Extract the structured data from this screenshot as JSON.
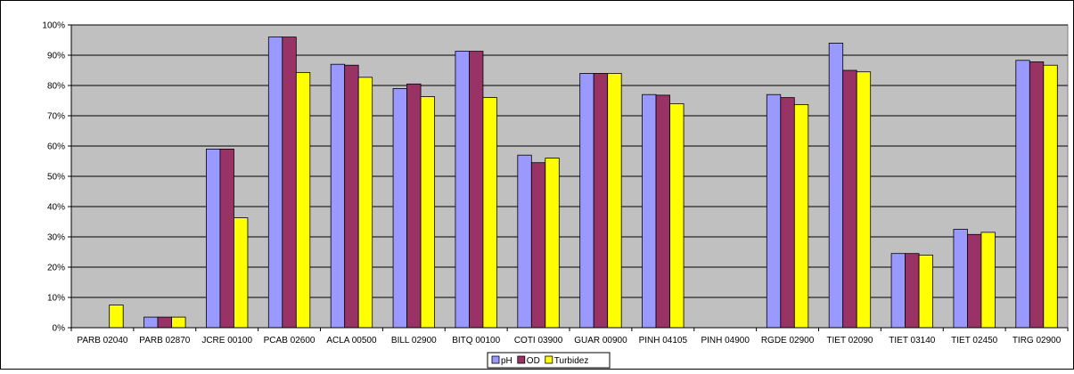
{
  "chart_data": {
    "type": "bar",
    "title": "",
    "xlabel": "",
    "ylabel": "",
    "ylim": [
      0,
      100
    ],
    "yticks": [
      "0%",
      "10%",
      "20%",
      "30%",
      "40%",
      "50%",
      "60%",
      "70%",
      "80%",
      "90%",
      "100%"
    ],
    "grid": true,
    "plot_background": "#c0c0c0",
    "legend_position": "bottom",
    "categories": [
      "PARB 02040",
      "PARB 02870",
      "JCRE 00100",
      "PCAB 02600",
      "ACLA 00500",
      "BILL 02900",
      "BITQ 00100",
      "COTI 03900",
      "GUAR 00900",
      "PINH 04105",
      "PINH 04900",
      "RGDE 02900",
      "TIET 02090",
      "TIET 03140",
      "TIET 02450",
      "TIRG 02900"
    ],
    "series": [
      {
        "name": "pH",
        "color": "#9999ff",
        "values": [
          0,
          3.5,
          59,
          96,
          87,
          79,
          91.3,
          57,
          84,
          77,
          0,
          77,
          94,
          24.5,
          32.5,
          88.3
        ]
      },
      {
        "name": "OD",
        "color": "#993366",
        "values": [
          0,
          3.5,
          59,
          96,
          86.7,
          80.5,
          91.3,
          54.5,
          84,
          76.8,
          0,
          76,
          85,
          24.5,
          30.8,
          87.8
        ]
      },
      {
        "name": "Turbidez",
        "color": "#ffff00",
        "values": [
          7.5,
          3.5,
          36.3,
          84.3,
          82.7,
          76.3,
          76,
          56,
          84,
          74,
          0,
          73.7,
          84.5,
          24,
          31.5,
          86.7
        ]
      }
    ]
  }
}
